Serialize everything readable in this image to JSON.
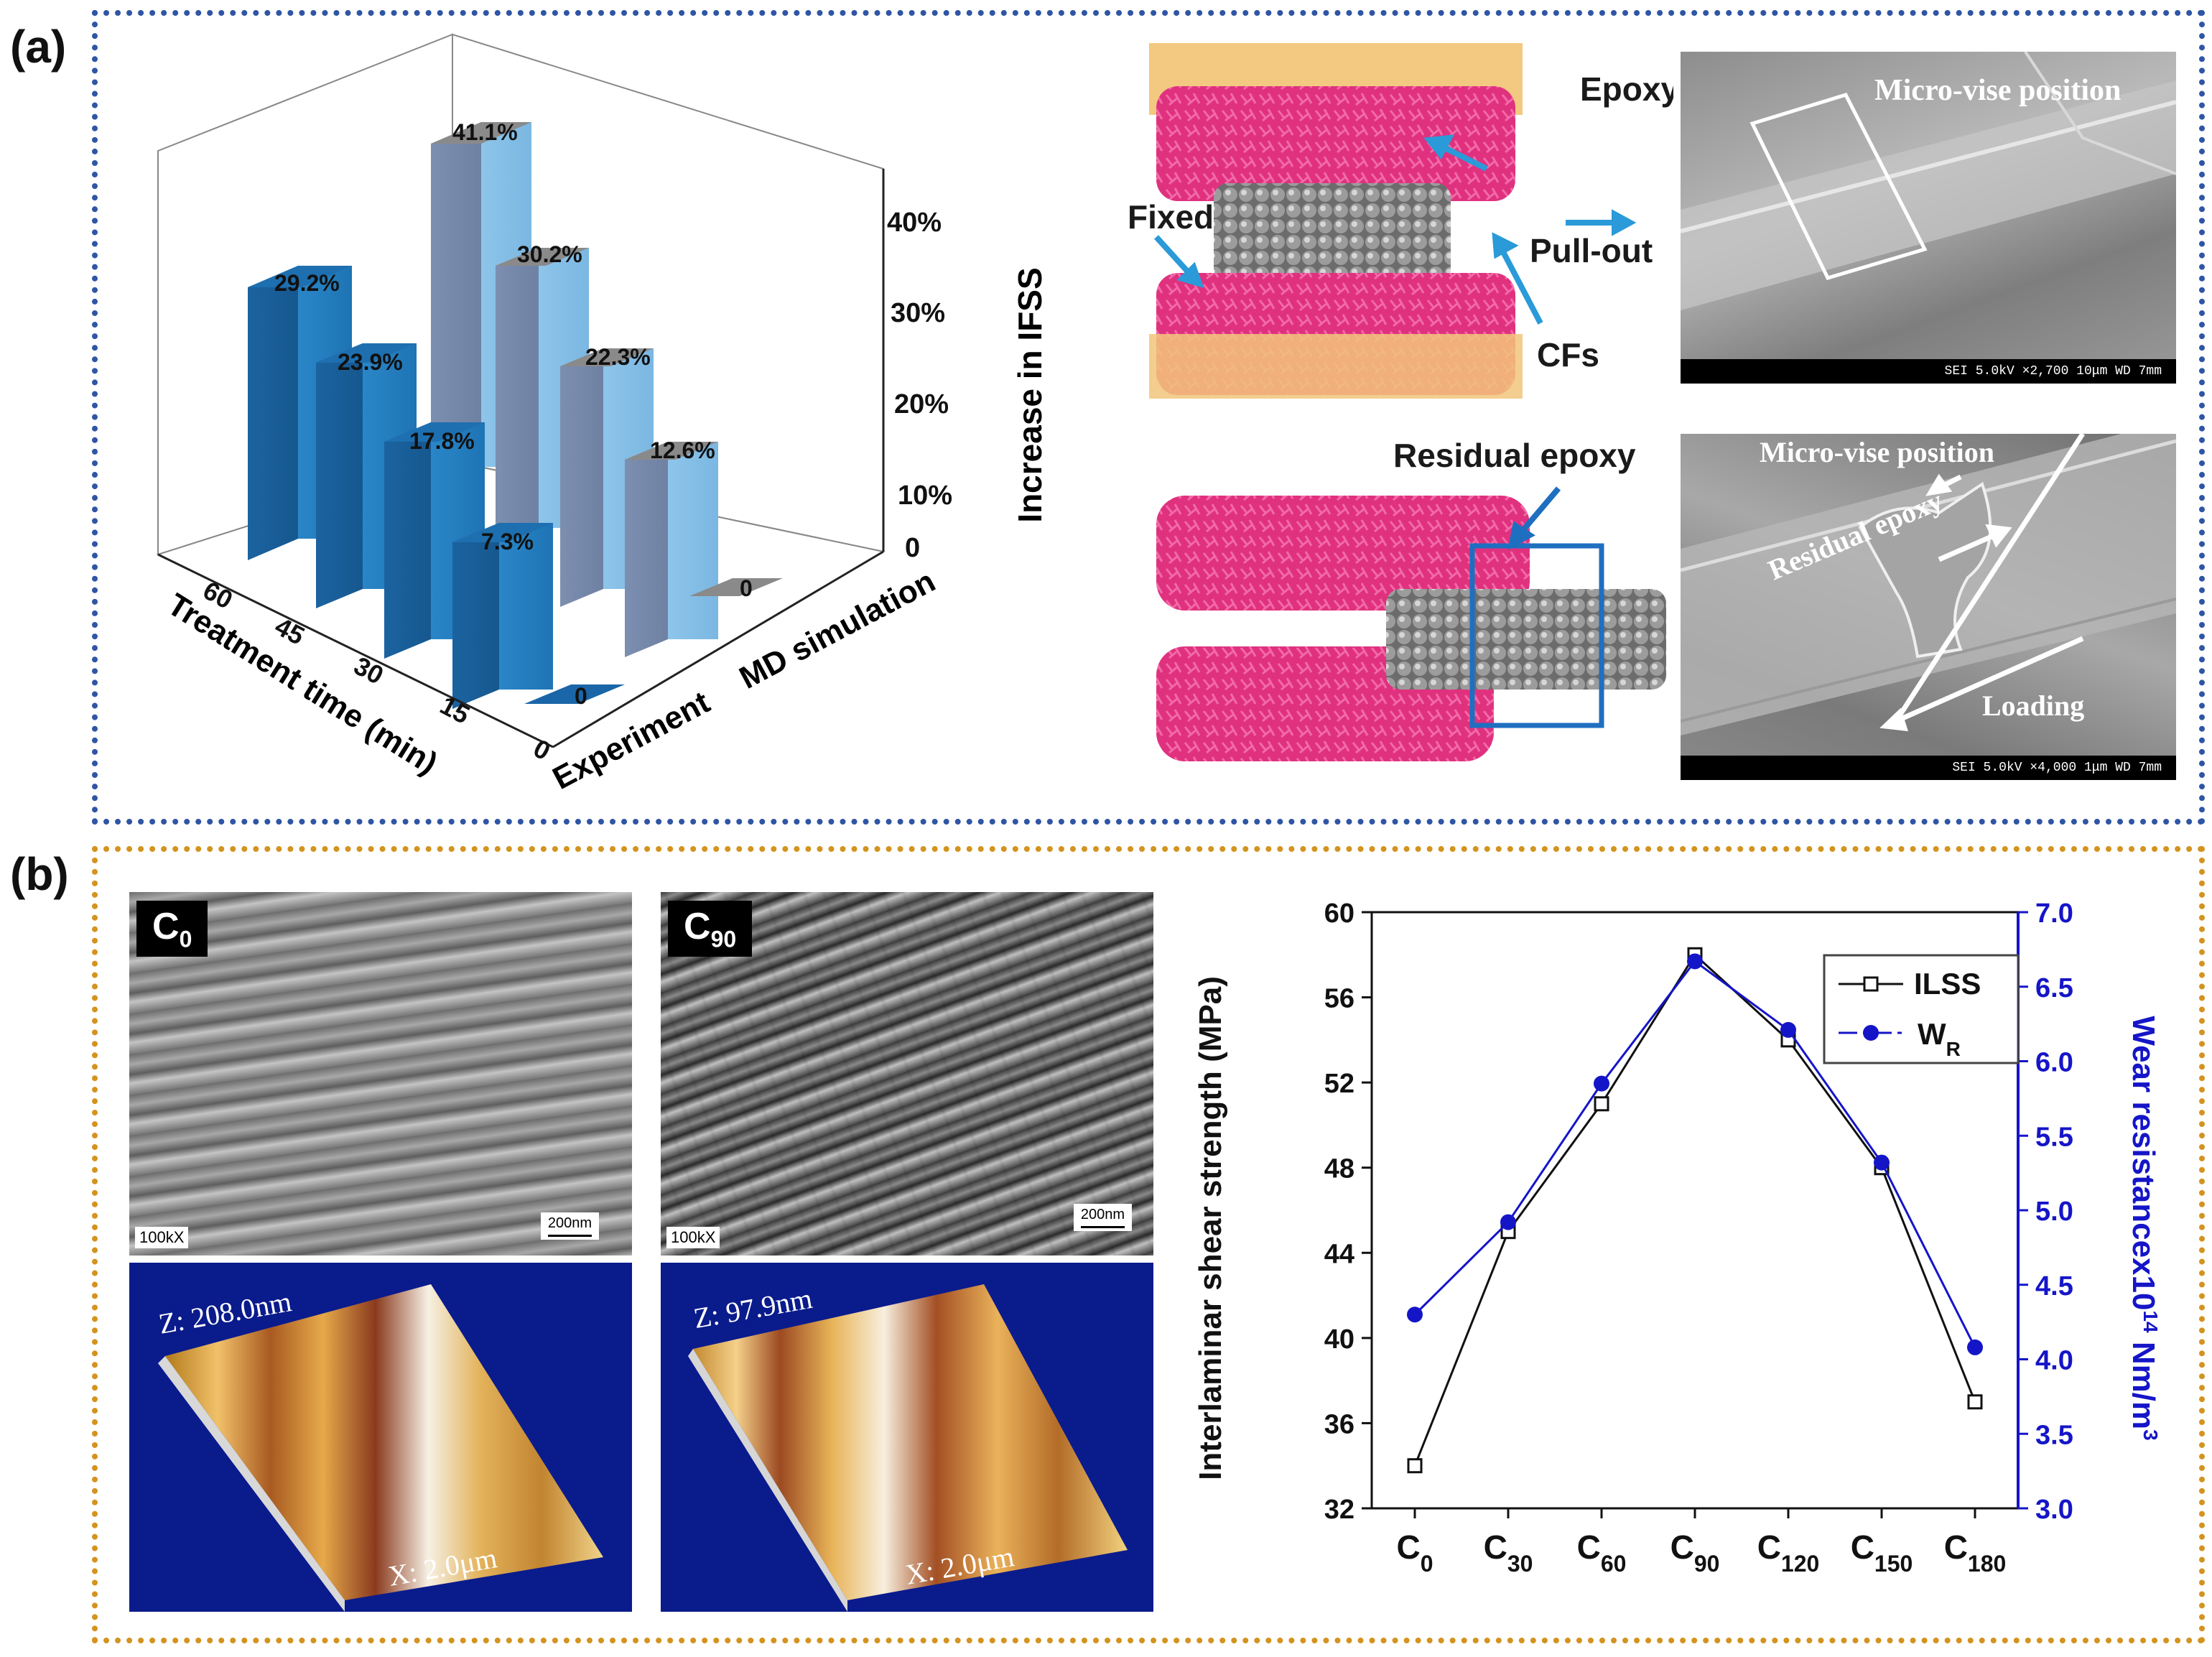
{
  "panels": {
    "a_label": "(a)",
    "b_label": "(b)"
  },
  "bar3d": {
    "axis_title": "Increase in IFSS",
    "z_ticks": [
      "0",
      "10%",
      "20%",
      "30%",
      "40%"
    ],
    "x_title": "Treatment time (min)",
    "x_ticks": [
      "60",
      "45",
      "30",
      "15",
      "0"
    ],
    "series_labels": [
      "Experiment",
      "MD simulation"
    ],
    "experiment_labels": [
      "29.2%",
      "23.9%",
      "17.8%",
      "7.3%",
      "0"
    ],
    "simulation_labels": [
      "41.1%",
      "30.2%",
      "22.3%",
      "12.6%",
      "0"
    ]
  },
  "md_schematic": {
    "epoxy": "Epoxy",
    "fixed": "Fixed",
    "pull_out": "Pull-out",
    "cfs": "CFs",
    "residual_epoxy": "Residual epoxy"
  },
  "sem_a": {
    "top_label": "Micro-vise position",
    "top_bar": "SEI  5.0kV  ×2,700  10μm WD 7mm",
    "bottom_label_1": "Micro-vise position",
    "bottom_label_2": "Residual epoxy",
    "bottom_label_3": "Loading",
    "bottom_bar": "SEI  5.0kV  ×4,000  1μm WD 7mm"
  },
  "sem_b": {
    "c0_badge_main": "C",
    "c0_badge_sub": "0",
    "c90_badge_main": "C",
    "c90_badge_sub": "90",
    "mag": "100kX",
    "scale": "200nm",
    "afm_c0_z": "Z: 208.0nm",
    "afm_c90_z": "Z: 97.9nm",
    "afm_x": "X: 2.0μm"
  },
  "chart_data": {
    "type": "line",
    "categories": [
      "C0",
      "C30",
      "C60",
      "C90",
      "C120",
      "C150",
      "C180"
    ],
    "category_labels": [
      {
        "main": "C",
        "sub": "0"
      },
      {
        "main": "C",
        "sub": "30"
      },
      {
        "main": "C",
        "sub": "60"
      },
      {
        "main": "C",
        "sub": "90"
      },
      {
        "main": "C",
        "sub": "120"
      },
      {
        "main": "C",
        "sub": "150"
      },
      {
        "main": "C",
        "sub": "180"
      }
    ],
    "series": [
      {
        "name": "ILSS",
        "axis": "left",
        "color": "#111111",
        "marker": "open-square",
        "values": [
          34,
          45,
          51,
          58,
          54,
          48,
          37
        ]
      },
      {
        "name": "W",
        "name_sub": "R",
        "axis": "right",
        "color": "#1515c8",
        "marker": "filled-circle",
        "values": [
          4.3,
          4.92,
          5.85,
          6.67,
          6.21,
          5.32,
          4.08
        ]
      }
    ],
    "ylabel": "Interlaminar shear strength (MPa)",
    "ylim": [
      32,
      60
    ],
    "yticks": [
      32,
      36,
      40,
      44,
      48,
      52,
      56,
      60
    ],
    "y2label_main": "Wear resistancex10",
    "y2label_sup": "14",
    "y2label_unit": " Nm/m",
    "y2label_unit_sup": "3",
    "y2lim": [
      3.0,
      7.0
    ],
    "y2ticks": [
      "3.0",
      "3.5",
      "4.0",
      "4.5",
      "5.0",
      "5.5",
      "6.0",
      "6.5",
      "7.0"
    ],
    "legend_position": "top-right"
  }
}
